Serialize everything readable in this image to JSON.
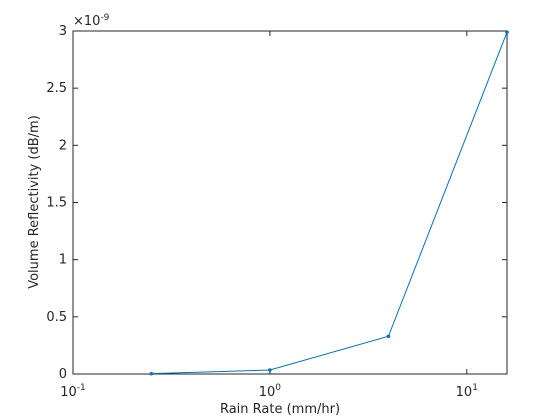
{
  "chart_data": {
    "type": "line",
    "xlabel": "Rain Rate (mm/hr)",
    "ylabel": "Volume Reflectivity (dB/m)",
    "y_multiplier": {
      "base": "×10",
      "exponent": "-9"
    },
    "x": [
      0.25,
      1,
      4,
      16
    ],
    "series": [
      {
        "color": "#0072bd",
        "values": [
          0.003,
          0.035,
          0.33,
          2.99
        ]
      }
    ],
    "xscale": "log",
    "xlim": [
      0.1,
      16
    ],
    "xticks": [
      {
        "value": 0.1,
        "label": "10",
        "exponent": "-1"
      },
      {
        "value": 1,
        "label": "10",
        "exponent": "0"
      },
      {
        "value": 10,
        "label": "10",
        "exponent": "1"
      }
    ],
    "ylim": [
      0,
      3
    ],
    "yticks": [
      0,
      0.5,
      1,
      1.5,
      2,
      2.5,
      3
    ]
  }
}
